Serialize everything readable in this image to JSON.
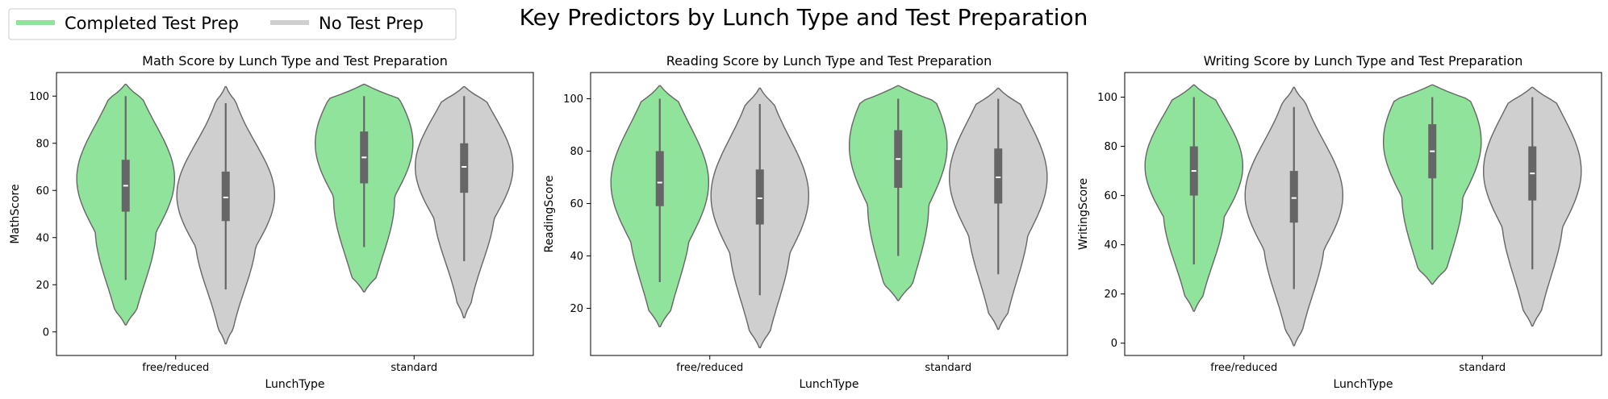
{
  "figure": {
    "suptitle": "Key Predictors by Lunch Type and Test Preparation",
    "legend": {
      "placement": "top-left",
      "entries": [
        {
          "label": "Completed Test Prep",
          "color": "#90e39a"
        },
        {
          "label": "No Test Prep",
          "color": "#cfcfcf"
        }
      ]
    }
  },
  "chart_data": [
    {
      "type": "violin",
      "title": "Math Score by Lunch Type and Test Preparation",
      "xlabel": "LunchType",
      "ylabel": "MathScore",
      "categories": [
        "free/reduced",
        "standard"
      ],
      "ylim": [
        -10,
        110
      ],
      "yticks": [
        0,
        20,
        40,
        60,
        80,
        100
      ],
      "series": [
        {
          "name": "Completed Test Prep",
          "color": "#90e39a",
          "groups": [
            {
              "min": 3,
              "q1": 51,
              "median": 62,
              "q3": 73,
              "max": 105,
              "wlo": 22,
              "whi": 100,
              "mode": 65
            },
            {
              "min": 17,
              "q1": 63,
              "median": 74,
              "q3": 85,
              "max": 105,
              "wlo": 36,
              "whi": 100,
              "mode": 80
            }
          ]
        },
        {
          "name": "No Test Prep",
          "color": "#cfcfcf",
          "groups": [
            {
              "min": -5,
              "q1": 47,
              "median": 57,
              "q3": 68,
              "max": 104,
              "wlo": 18,
              "whi": 97,
              "mode": 58
            },
            {
              "min": 6,
              "q1": 59,
              "median": 70,
              "q3": 80,
              "max": 104,
              "wlo": 30,
              "whi": 100,
              "mode": 70
            }
          ]
        }
      ]
    },
    {
      "type": "violin",
      "title": "Reading Score by Lunch Type and Test Preparation",
      "xlabel": "LunchType",
      "ylabel": "ReadingScore",
      "categories": [
        "free/reduced",
        "standard"
      ],
      "ylim": [
        2,
        110
      ],
      "yticks": [
        20,
        40,
        60,
        80,
        100
      ],
      "series": [
        {
          "name": "Completed Test Prep",
          "color": "#90e39a",
          "groups": [
            {
              "min": 13,
              "q1": 59,
              "median": 68,
              "q3": 80,
              "max": 105,
              "wlo": 30,
              "whi": 100,
              "mode": 68
            },
            {
              "min": 23,
              "q1": 66,
              "median": 77,
              "q3": 88,
              "max": 105,
              "wlo": 40,
              "whi": 100,
              "mode": 82
            }
          ]
        },
        {
          "name": "No Test Prep",
          "color": "#cfcfcf",
          "groups": [
            {
              "min": 5,
              "q1": 52,
              "median": 62,
              "q3": 73,
              "max": 104,
              "wlo": 25,
              "whi": 98,
              "mode": 63
            },
            {
              "min": 12,
              "q1": 60,
              "median": 70,
              "q3": 81,
              "max": 104,
              "wlo": 33,
              "whi": 100,
              "mode": 70
            }
          ]
        }
      ]
    },
    {
      "type": "violin",
      "title": "Writing Score by Lunch Type and Test Preparation",
      "xlabel": "LunchType",
      "ylabel": "WritingScore",
      "categories": [
        "free/reduced",
        "standard"
      ],
      "ylim": [
        -5,
        110
      ],
      "yticks": [
        0,
        20,
        40,
        60,
        80,
        100
      ],
      "series": [
        {
          "name": "Completed Test Prep",
          "color": "#90e39a",
          "groups": [
            {
              "min": 13,
              "q1": 60,
              "median": 70,
              "q3": 80,
              "max": 105,
              "wlo": 32,
              "whi": 100,
              "mode": 72
            },
            {
              "min": 24,
              "q1": 67,
              "median": 78,
              "q3": 89,
              "max": 105,
              "wlo": 38,
              "whi": 100,
              "mode": 82
            }
          ]
        },
        {
          "name": "No Test Prep",
          "color": "#cfcfcf",
          "groups": [
            {
              "min": -1,
              "q1": 49,
              "median": 59,
              "q3": 70,
              "max": 104,
              "wlo": 22,
              "whi": 96,
              "mode": 60
            },
            {
              "min": 7,
              "q1": 58,
              "median": 69,
              "q3": 80,
              "max": 104,
              "wlo": 30,
              "whi": 100,
              "mode": 70
            }
          ]
        }
      ]
    }
  ]
}
